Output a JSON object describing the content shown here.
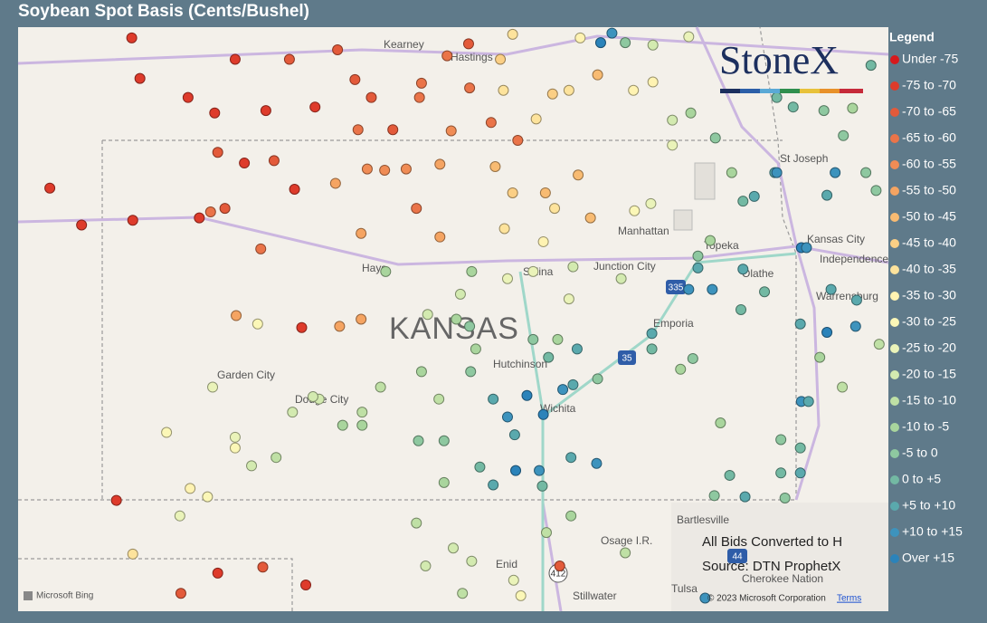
{
  "header": {
    "title": "Soybean Spot Basis (Cents/Bushel)"
  },
  "logo": "StoneX",
  "legend": {
    "title": "Legend",
    "items": [
      {
        "label": "Under -75",
        "color": "#d7191c"
      },
      {
        "label": "-75 to -70",
        "color": "#de3b2b"
      },
      {
        "label": "-70 to -65",
        "color": "#e35a3a"
      },
      {
        "label": "-65 to -60",
        "color": "#ea7449"
      },
      {
        "label": "-60 to -55",
        "color": "#f08c55"
      },
      {
        "label": "-55 to -50",
        "color": "#f5a462"
      },
      {
        "label": "-50 to -45",
        "color": "#f8bb72"
      },
      {
        "label": "-45 to -40",
        "color": "#fbcf85"
      },
      {
        "label": "-40 to -35",
        "color": "#fde39c"
      },
      {
        "label": "-35 to -30",
        "color": "#fff3b2"
      },
      {
        "label": "-30 to -25",
        "color": "#fbf7b7"
      },
      {
        "label": "-25 to -20",
        "color": "#eaf3b9"
      },
      {
        "label": "-20 to -15",
        "color": "#d3eab0"
      },
      {
        "label": "-15 to -10",
        "color": "#bfe0a5"
      },
      {
        "label": "-10 to -5",
        "color": "#a9d59d"
      },
      {
        "label": "-5 to 0",
        "color": "#8ec8a0"
      },
      {
        "label": "0 to +5",
        "color": "#73b9a3"
      },
      {
        "label": "+5 to +10",
        "color": "#5aa9ad"
      },
      {
        "label": "+10 to +15",
        "color": "#3d93bd"
      },
      {
        "label": "Over +15",
        "color": "#2b83ba"
      }
    ]
  },
  "map": {
    "lonlim": [
      -102.5,
      -94.0
    ],
    "latlim": [
      36.0,
      40.9
    ],
    "places": [
      "Kearney",
      "Hastings",
      "St Joseph",
      "Kansas City",
      "Independence",
      "Manhattan",
      "Topeka",
      "Junction City",
      "Hays",
      "Salina",
      "Olathe",
      "Warrensburg",
      "Emporia",
      "KANSAS",
      "Hutchinson",
      "Garden City",
      "Dodge City",
      "Wichita",
      "Bartlesville",
      "Osage I.R.",
      "Enid",
      "Cherokee Nation",
      "Tulsa",
      "Stillwater"
    ],
    "shields": [
      "335",
      "35",
      "412",
      "44"
    ]
  },
  "notes": [
    "All Bids Converted to H",
    "Source: DTN ProphetX"
  ],
  "attribution": {
    "bing": "Microsoft Bing",
    "copyright": "© 2023 Microsoft Corporation",
    "terms": "Terms"
  },
  "stations": [
    [
      -101.39,
      40.81,
      1
    ],
    [
      -102.19,
      39.55,
      1
    ],
    [
      -101.88,
      39.24,
      1
    ],
    [
      -100.38,
      40.63,
      1
    ],
    [
      -101.31,
      40.47,
      1
    ],
    [
      -100.84,
      40.31,
      1
    ],
    [
      -100.58,
      40.18,
      1
    ],
    [
      -100.08,
      40.2,
      1
    ],
    [
      -99.6,
      40.23,
      1
    ],
    [
      -100.29,
      39.76,
      1
    ],
    [
      -99.8,
      39.54,
      1
    ],
    [
      -100.73,
      39.3,
      1
    ],
    [
      -101.38,
      39.28,
      1
    ],
    [
      -99.73,
      38.38,
      1
    ],
    [
      -101.54,
      36.93,
      1
    ],
    [
      -99.69,
      36.22,
      1
    ],
    [
      -100.55,
      36.32,
      1
    ],
    [
      -100.11,
      36.37,
      2
    ],
    [
      -100.91,
      36.15,
      2
    ],
    [
      -99.85,
      40.63,
      2
    ],
    [
      -99.21,
      40.46,
      2
    ],
    [
      -99.05,
      40.31,
      2
    ],
    [
      -98.84,
      40.04,
      2
    ],
    [
      -99.18,
      40.04,
      3
    ],
    [
      -98.58,
      40.31,
      3
    ],
    [
      -98.56,
      40.43,
      3
    ],
    [
      -98.31,
      40.66,
      3
    ],
    [
      -98.1,
      40.76,
      2
    ],
    [
      -99.38,
      40.71,
      2
    ],
    [
      -100.55,
      39.85,
      2
    ],
    [
      -100.0,
      39.78,
      2
    ],
    [
      -100.62,
      39.35,
      3
    ],
    [
      -100.48,
      39.38,
      2
    ],
    [
      -100.13,
      39.04,
      3
    ],
    [
      -99.09,
      39.71,
      4
    ],
    [
      -98.92,
      39.7,
      4
    ],
    [
      -98.71,
      39.71,
      4
    ],
    [
      -99.4,
      39.59,
      5
    ],
    [
      -99.15,
      39.17,
      5
    ],
    [
      -98.38,
      39.75,
      5
    ],
    [
      -98.61,
      39.38,
      3
    ],
    [
      -98.38,
      39.14,
      5
    ],
    [
      -97.62,
      39.95,
      3
    ],
    [
      -97.88,
      40.1,
      3
    ],
    [
      -98.09,
      40.39,
      3
    ],
    [
      -99.36,
      38.39,
      5
    ],
    [
      -99.15,
      38.45,
      5
    ],
    [
      -100.37,
      38.48,
      5
    ],
    [
      -97.84,
      39.73,
      6
    ],
    [
      -97.67,
      39.51,
      7
    ],
    [
      -97.35,
      39.51,
      6
    ],
    [
      -97.79,
      40.63,
      7
    ],
    [
      -97.28,
      40.34,
      7
    ],
    [
      -97.44,
      40.13,
      8
    ],
    [
      -97.03,
      39.66,
      6
    ],
    [
      -96.84,
      40.5,
      6
    ],
    [
      -96.91,
      39.3,
      6
    ],
    [
      -97.12,
      40.37,
      8
    ],
    [
      -97.67,
      40.84,
      8
    ],
    [
      -97.01,
      40.81,
      9
    ],
    [
      -97.26,
      39.38,
      8
    ],
    [
      -97.75,
      39.21,
      8
    ],
    [
      -97.37,
      39.1,
      9
    ],
    [
      -96.48,
      39.36,
      10
    ],
    [
      -96.32,
      39.42,
      11
    ],
    [
      -100.16,
      38.41,
      10
    ],
    [
      -100.6,
      37.88,
      11
    ],
    [
      -101.05,
      37.5,
      10
    ],
    [
      -100.65,
      36.96,
      10
    ],
    [
      -100.82,
      37.03,
      9
    ],
    [
      -101.38,
      36.48,
      8
    ],
    [
      -100.92,
      36.8,
      11
    ],
    [
      -100.38,
      37.46,
      11
    ],
    [
      -100.22,
      37.22,
      12
    ],
    [
      -99.98,
      37.29,
      13
    ],
    [
      -99.82,
      37.67,
      12
    ],
    [
      -99.56,
      37.78,
      12
    ],
    [
      -99.33,
      37.56,
      14
    ],
    [
      -99.14,
      37.67,
      13
    ],
    [
      -98.91,
      38.85,
      14
    ],
    [
      -98.56,
      38.01,
      14
    ],
    [
      -98.39,
      37.78,
      13
    ],
    [
      -98.08,
      38.01,
      15
    ],
    [
      -97.86,
      37.78,
      17
    ],
    [
      -97.72,
      37.63,
      18
    ],
    [
      -97.53,
      37.81,
      19
    ],
    [
      -97.37,
      37.65,
      19
    ],
    [
      -97.65,
      37.48,
      17
    ],
    [
      -97.99,
      37.21,
      16
    ],
    [
      -97.64,
      37.18,
      19
    ],
    [
      -97.41,
      37.18,
      18
    ],
    [
      -97.1,
      37.29,
      17
    ],
    [
      -96.85,
      37.24,
      18
    ],
    [
      -97.38,
      37.05,
      16
    ],
    [
      -97.86,
      37.06,
      17
    ],
    [
      -98.34,
      37.08,
      14
    ],
    [
      -98.59,
      37.43,
      15
    ],
    [
      -98.34,
      37.43,
      15
    ],
    [
      -98.61,
      36.74,
      13
    ],
    [
      -98.25,
      36.53,
      12
    ],
    [
      -98.07,
      36.42,
      12
    ],
    [
      -97.66,
      36.26,
      11
    ],
    [
      -97.21,
      36.38,
      2
    ],
    [
      -97.34,
      36.66,
      13
    ],
    [
      -97.1,
      36.8,
      14
    ],
    [
      -97.47,
      38.28,
      15
    ],
    [
      -97.32,
      38.13,
      16
    ],
    [
      -97.23,
      38.28,
      14
    ],
    [
      -97.04,
      38.2,
      17
    ],
    [
      -97.18,
      37.86,
      18
    ],
    [
      -97.08,
      37.9,
      17
    ],
    [
      -97.47,
      38.85,
      11
    ],
    [
      -97.12,
      38.62,
      11
    ],
    [
      -97.08,
      38.89,
      12
    ],
    [
      -96.61,
      38.79,
      12
    ],
    [
      -96.84,
      37.95,
      15
    ],
    [
      -96.31,
      38.33,
      17
    ],
    [
      -96.31,
      38.2,
      16
    ],
    [
      -96.03,
      38.03,
      14
    ],
    [
      -95.91,
      38.12,
      15
    ],
    [
      -95.86,
      38.98,
      15
    ],
    [
      -95.86,
      38.88,
      17
    ],
    [
      -95.95,
      38.7,
      18
    ],
    [
      -95.72,
      38.7,
      18
    ],
    [
      -95.42,
      38.87,
      17
    ],
    [
      -95.21,
      38.68,
      16
    ],
    [
      -95.44,
      38.53,
      16
    ],
    [
      -94.85,
      39.05,
      19
    ],
    [
      -94.8,
      39.05,
      18
    ],
    [
      -94.56,
      38.7,
      17
    ],
    [
      -94.31,
      38.61,
      17
    ],
    [
      -94.6,
      38.34,
      19
    ],
    [
      -94.86,
      38.41,
      17
    ],
    [
      -94.32,
      38.39,
      18
    ],
    [
      -94.85,
      37.76,
      18
    ],
    [
      -94.78,
      37.76,
      17
    ],
    [
      -94.67,
      38.13,
      14
    ],
    [
      -94.45,
      37.88,
      13
    ],
    [
      -94.09,
      38.24,
      13
    ],
    [
      -95.05,
      37.44,
      15
    ],
    [
      -94.86,
      37.37,
      16
    ],
    [
      -95.05,
      37.16,
      16
    ],
    [
      -94.86,
      37.16,
      17
    ],
    [
      -95.55,
      37.14,
      16
    ],
    [
      -95.7,
      36.97,
      15
    ],
    [
      -95.4,
      36.96,
      17
    ],
    [
      -95.01,
      36.95,
      15
    ],
    [
      -95.64,
      37.58,
      14
    ],
    [
      -95.11,
      39.68,
      17
    ],
    [
      -95.09,
      39.68,
      18
    ],
    [
      -94.52,
      39.68,
      18
    ],
    [
      -94.6,
      39.49,
      17
    ],
    [
      -95.31,
      39.48,
      17
    ],
    [
      -95.42,
      39.44,
      16
    ],
    [
      -94.93,
      40.23,
      16
    ],
    [
      -95.09,
      40.31,
      16
    ],
    [
      -94.63,
      40.2,
      15
    ],
    [
      -94.35,
      40.22,
      14
    ],
    [
      -94.44,
      39.99,
      15
    ],
    [
      -94.17,
      40.58,
      16
    ],
    [
      -94.12,
      39.53,
      15
    ],
    [
      -94.22,
      39.68,
      15
    ],
    [
      -95.93,
      40.18,
      14
    ],
    [
      -96.11,
      40.12,
      12
    ],
    [
      -96.11,
      39.91,
      11
    ],
    [
      -95.69,
      39.97,
      15
    ],
    [
      -95.53,
      39.68,
      14
    ],
    [
      -95.74,
      39.11,
      14
    ],
    [
      -96.7,
      40.85,
      18
    ],
    [
      -96.81,
      40.77,
      19
    ],
    [
      -96.57,
      40.77,
      15
    ],
    [
      -96.3,
      40.75,
      12
    ],
    [
      -95.95,
      40.82,
      11
    ],
    [
      -96.3,
      40.44,
      9
    ],
    [
      -96.49,
      40.37,
      9
    ],
    [
      -97.76,
      40.37,
      8
    ],
    [
      -98.27,
      40.03,
      4
    ],
    [
      -97.72,
      38.79,
      11
    ],
    [
      -98.07,
      38.85,
      14
    ],
    [
      -98.18,
      38.66,
      12
    ],
    [
      -98.5,
      38.49,
      12
    ],
    [
      -98.03,
      38.2,
      14
    ],
    [
      -98.09,
      38.39,
      15
    ],
    [
      -98.22,
      38.45,
      14
    ],
    [
      -98.96,
      37.88,
      13
    ],
    [
      -99.14,
      37.56,
      14
    ],
    [
      -99.62,
      37.8,
      12
    ],
    [
      -100.38,
      37.37,
      10
    ],
    [
      -98.52,
      36.38,
      12
    ],
    [
      -98.16,
      36.15,
      13
    ],
    [
      -97.59,
      36.13,
      10
    ],
    [
      -96.57,
      36.49,
      13
    ],
    [
      -95.79,
      36.11,
      18
    ]
  ]
}
